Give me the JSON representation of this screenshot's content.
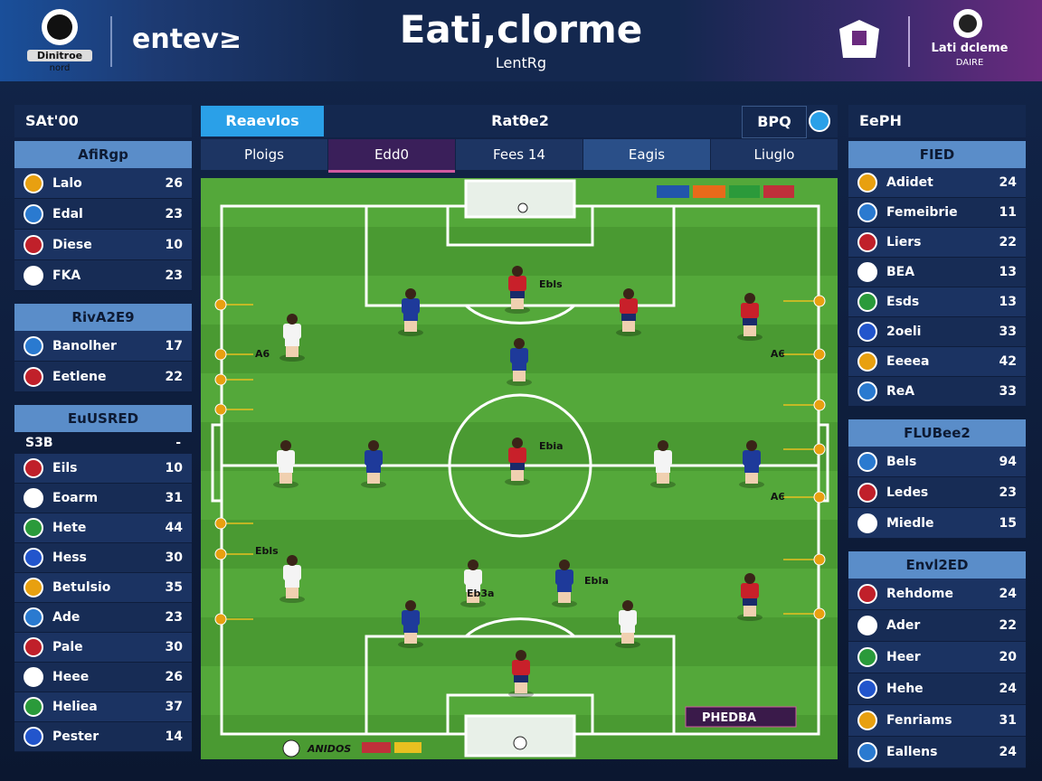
{
  "header": {
    "left_logo": "Dinitroe",
    "left_logo_sub": "nord",
    "brand": "entev≥",
    "title": "Eati,clorme",
    "subtitle": "LentRg",
    "right_logo": "Lati dcleme",
    "right_logo_sub": "DAIRE"
  },
  "left_panel": {
    "title": "SAt'00",
    "sections": [
      {
        "title": "AfiRgp",
        "rows": [
          {
            "name": "Lalo",
            "value": 26
          },
          {
            "name": "Edal",
            "value": 23
          },
          {
            "name": "Diese",
            "value": 10
          },
          {
            "name": "FKA",
            "value": 23
          }
        ]
      },
      {
        "title": "RivA2E9",
        "rows": [
          {
            "name": "Banolher",
            "value": 17
          },
          {
            "name": "Eetlene",
            "value": 22
          }
        ]
      },
      {
        "title": "EuUSRED",
        "subheader": {
          "name": "S3B",
          "value": "-"
        },
        "rows": [
          {
            "name": "Eils",
            "value": 10
          },
          {
            "name": "Eoarm",
            "value": 31
          },
          {
            "name": "Hete",
            "value": 44
          },
          {
            "name": "Hess",
            "value": 30
          },
          {
            "name": "Betulsio",
            "value": 35
          },
          {
            "name": "Ade",
            "value": 23
          },
          {
            "name": "Pale",
            "value": 30
          },
          {
            "name": "Heee",
            "value": 26
          },
          {
            "name": "Heliea",
            "value": 37
          },
          {
            "name": "Pester",
            "value": 14
          }
        ]
      }
    ]
  },
  "tabs": {
    "active": "Reaevlos",
    "center": "Ratθe2",
    "right": "BPQ",
    "sub": [
      "Ploigs",
      "Edd0",
      "Fees 14",
      "Eagis",
      "Liuglo"
    ]
  },
  "right_panel": {
    "title": "EePH",
    "sections": [
      {
        "title": "FIED",
        "rows": [
          {
            "name": "Adidet",
            "value": 24
          },
          {
            "name": "Femeibrie",
            "value": 11
          },
          {
            "name": "Liers",
            "value": 22
          },
          {
            "name": "BEA",
            "value": 13
          },
          {
            "name": "Esds",
            "value": 13
          },
          {
            "name": "2oeli",
            "value": 33
          },
          {
            "name": "Eeeea",
            "value": 42
          },
          {
            "name": "ReA",
            "value": 33
          }
        ]
      },
      {
        "title": "FLUBee2",
        "rows": [
          {
            "name": "Bels",
            "value": 94
          },
          {
            "name": "Ledes",
            "value": 23
          },
          {
            "name": "Miedle",
            "value": 15
          }
        ]
      },
      {
        "title": "Envl2ED",
        "rows": [
          {
            "name": "Rehdome",
            "value": 24
          },
          {
            "name": "Ader",
            "value": 22
          },
          {
            "name": "Heer",
            "value": 20
          },
          {
            "name": "Hehe",
            "value": 24
          },
          {
            "name": "Fenriams",
            "value": 31
          },
          {
            "name": "Eallens",
            "value": 24
          }
        ]
      }
    ]
  },
  "pitch": {
    "labels": [
      "Ebls",
      "A6",
      "A6",
      "Ebia",
      "A6",
      "Ebls",
      "EbIa",
      "Eb3a"
    ],
    "badge": "PHEDBA",
    "footer": "ANIDOS"
  }
}
